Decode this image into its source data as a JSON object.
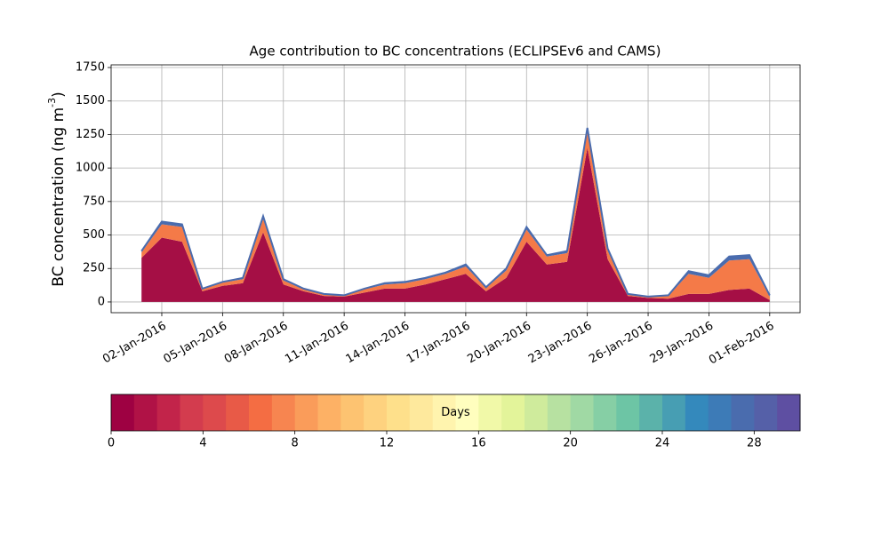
{
  "chart_data": {
    "type": "stacked-area",
    "title": "Age contribution to BC concentrations (ECLIPSEv6 and CAMS)",
    "ylabel": "BC concentration (ng m$^{-3}$)",
    "x": [
      "2016-01-01",
      "2016-01-02",
      "2016-01-03",
      "2016-01-04",
      "2016-01-05",
      "2016-01-06",
      "2016-01-07",
      "2016-01-08",
      "2016-01-09",
      "2016-01-10",
      "2016-01-11",
      "2016-01-12",
      "2016-01-13",
      "2016-01-14",
      "2016-01-15",
      "2016-01-16",
      "2016-01-17",
      "2016-01-18",
      "2016-01-19",
      "2016-01-20",
      "2016-01-21",
      "2016-01-22",
      "2016-01-23",
      "2016-01-24",
      "2016-01-25",
      "2016-01-26",
      "2016-01-27",
      "2016-01-28",
      "2016-01-29",
      "2016-01-30",
      "2016-01-31",
      "2016-02-01"
    ],
    "series": [
      {
        "color": "#a50f45",
        "values": [
          330,
          480,
          450,
          80,
          120,
          140,
          520,
          130,
          80,
          45,
          40,
          70,
          100,
          100,
          130,
          170,
          210,
          80,
          180,
          450,
          280,
          300,
          1150,
          320,
          45,
          30,
          25,
          60,
          60,
          90,
          100,
          15
        ]
      },
      {
        "color": "#f47a48",
        "values": [
          40,
          100,
          110,
          15,
          25,
          30,
          100,
          30,
          15,
          10,
          8,
          25,
          30,
          40,
          40,
          40,
          55,
          25,
          55,
          90,
          60,
          65,
          120,
          65,
          10,
          8,
          20,
          150,
          120,
          220,
          220,
          25
        ]
      },
      {
        "color": "#4a6cae",
        "values": [
          10,
          20,
          20,
          5,
          5,
          10,
          20,
          10,
          5,
          5,
          2,
          5,
          10,
          10,
          10,
          10,
          15,
          5,
          15,
          20,
          10,
          15,
          30,
          15,
          5,
          2,
          5,
          20,
          20,
          30,
          30,
          10
        ]
      }
    ],
    "xlim": [
      "2015-12-30T12:00",
      "2016-02-02T12:00"
    ],
    "xticks": [
      {
        "value": "2016-01-02",
        "label": "02-Jan-2016"
      },
      {
        "value": "2016-01-05",
        "label": "05-Jan-2016"
      },
      {
        "value": "2016-01-08",
        "label": "08-Jan-2016"
      },
      {
        "value": "2016-01-11",
        "label": "11-Jan-2016"
      },
      {
        "value": "2016-01-14",
        "label": "14-Jan-2016"
      },
      {
        "value": "2016-01-17",
        "label": "17-Jan-2016"
      },
      {
        "value": "2016-01-20",
        "label": "20-Jan-2016"
      },
      {
        "value": "2016-01-23",
        "label": "23-Jan-2016"
      },
      {
        "value": "2016-01-26",
        "label": "26-Jan-2016"
      },
      {
        "value": "2016-01-29",
        "label": "29-Jan-2016"
      },
      {
        "value": "2016-02-01",
        "label": "01-Feb-2016"
      }
    ],
    "ylim": [
      -80,
      1770
    ],
    "yticks": [
      0,
      250,
      500,
      750,
      1000,
      1250,
      1500,
      1750
    ],
    "grid": true,
    "colorbar": {
      "label": "Days",
      "lim": [
        0,
        30
      ],
      "ticks": [
        0,
        4,
        8,
        12,
        16,
        20,
        24,
        28
      ],
      "colors": [
        "#9e0142",
        "#b01246",
        "#c2244a",
        "#d33c4e",
        "#dd4a4c",
        "#e85a47",
        "#f46d43",
        "#f78550",
        "#fa9c5a",
        "#fdb165",
        "#fdc371",
        "#fed27f",
        "#fee08b",
        "#fee99d",
        "#fff4ae",
        "#fffebe",
        "#f1f9a8",
        "#e3f49a",
        "#cfeb9c",
        "#b7e1a1",
        "#a0d9a4",
        "#86cfa5",
        "#6dc5a5",
        "#5bb2aa",
        "#479eb3",
        "#3489bc",
        "#3d7bb7",
        "#4a6cae",
        "#5560a8",
        "#5e4fa2"
      ]
    }
  }
}
